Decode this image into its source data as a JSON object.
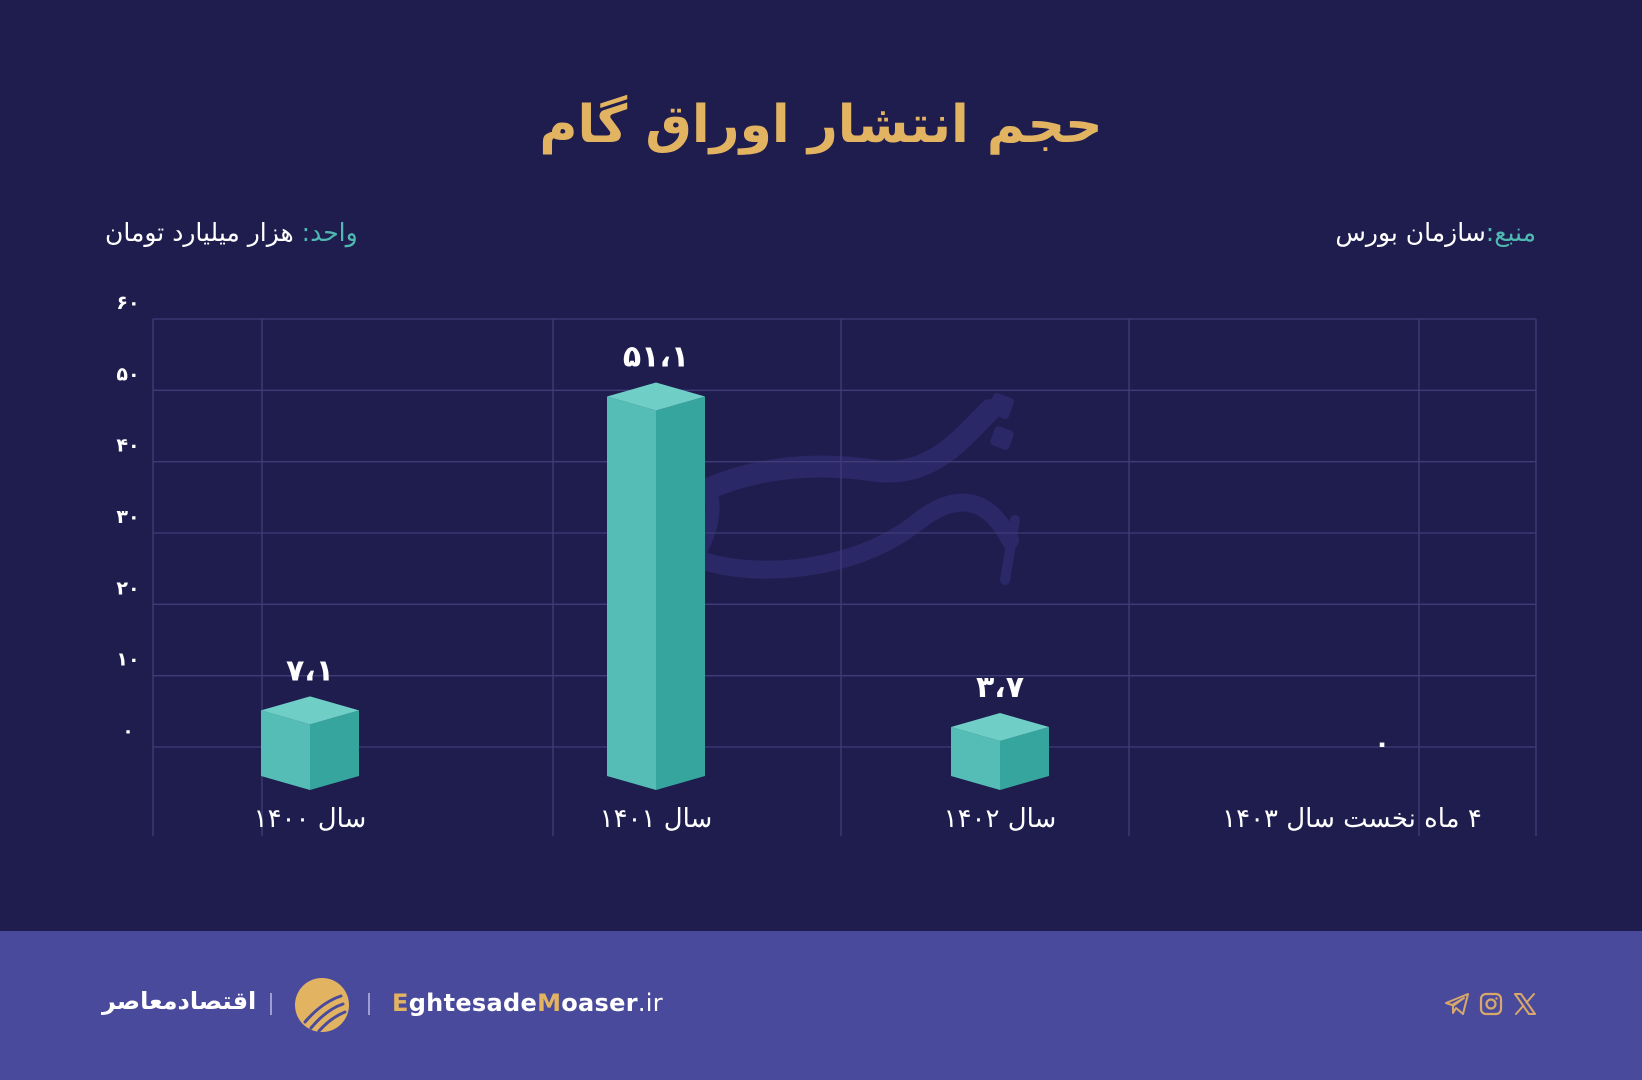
{
  "header": {
    "title": "حجم انتشار اوراق گام",
    "unit_label": "واحد:",
    "unit_value": " هزار میلیارد تومان",
    "source_label": "منبع:",
    "source_value": "سازمان بورس"
  },
  "colors": {
    "background": "#1F1D4E",
    "title": "#E2B462",
    "label_accent": "#4FB8B0",
    "grid": "#3F3D78",
    "bar_top": "#6FCFC7",
    "bar_left": "#55BDB6",
    "bar_right": "#35A59D",
    "footer": "#4A4A9C",
    "watermark": "#2A2866"
  },
  "chart_data": {
    "type": "bar",
    "title": "حجم انتشار اوراق گام",
    "xlabel": "",
    "ylabel": "هزار میلیارد تومان",
    "categories": [
      "سال ۱۴۰۰",
      "سال ۱۴۰۱",
      "سال ۱۴۰۲",
      "۴ ماه نخست سال ۱۴۰۳"
    ],
    "values": [
      7.1,
      51.1,
      3.7,
      0
    ],
    "value_labels": [
      "۷،۱",
      "۵۱،۱",
      "۳،۷",
      "۰"
    ],
    "yticks": [
      0,
      10,
      20,
      30,
      40,
      50,
      60
    ],
    "ytick_labels": [
      "۰",
      "۱۰",
      "۲۰",
      "۳۰",
      "۴۰",
      "۵۰",
      "۶۰"
    ],
    "ylim": [
      0,
      60
    ],
    "grid": true,
    "legend": null,
    "source": "سازمان بورس"
  },
  "footer": {
    "brand_fa": "اقتصادمعاصر",
    "site_e": "E",
    "site_mid1": "ghtesade",
    "site_m": "M",
    "site_mid2": "oaser",
    "site_tld": ".ir",
    "social": [
      "telegram-icon",
      "instagram-icon",
      "x-icon"
    ]
  }
}
